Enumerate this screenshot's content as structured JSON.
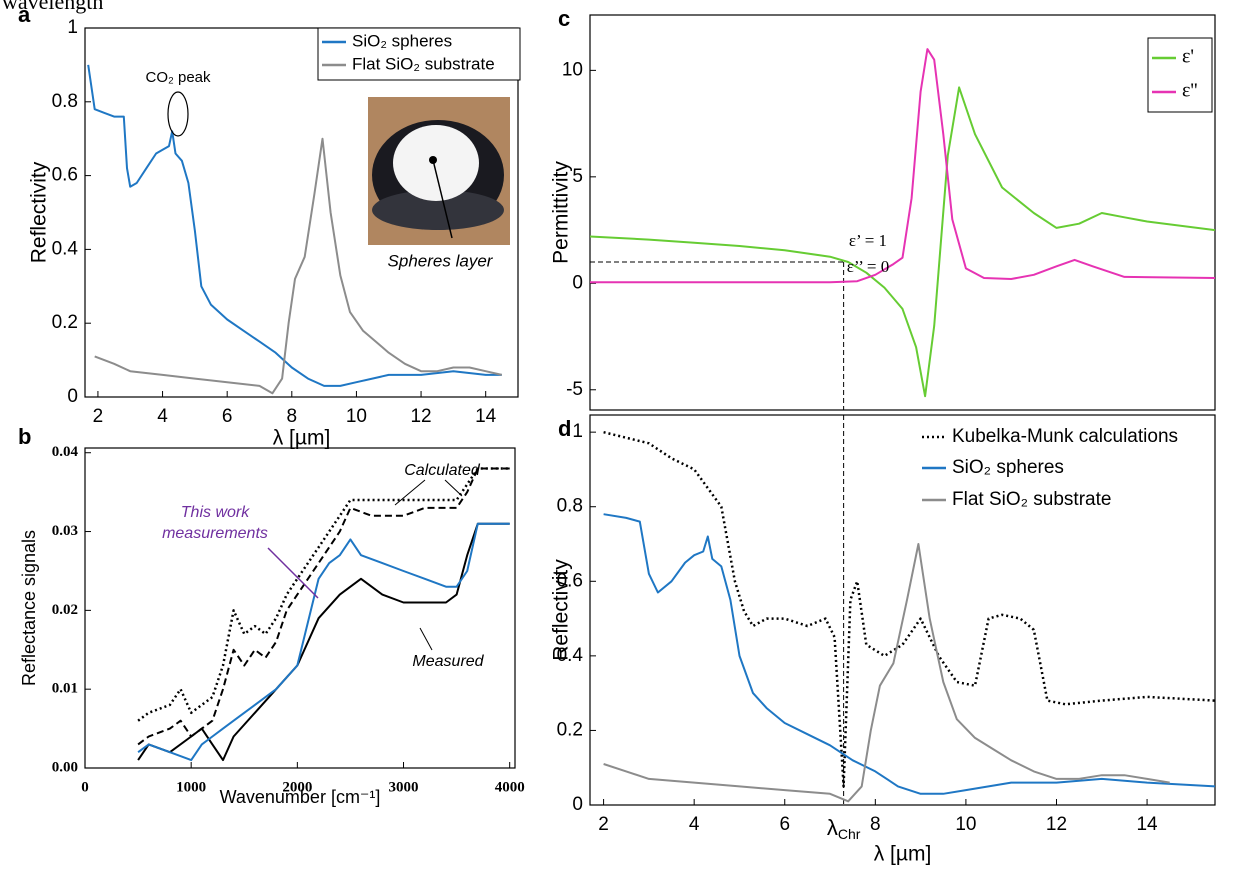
{
  "caption_fragment": "wavelength",
  "chart_data": [
    {
      "type": "line",
      "panel": "a",
      "xlabel": "λ [µm]",
      "ylabel": "Reflectivity",
      "xlim": [
        1.6,
        15.0
      ],
      "xticks": [
        2,
        4,
        6,
        8,
        10,
        12,
        14
      ],
      "ylim": [
        0,
        1
      ],
      "yticks": [
        0,
        0.2,
        0.4,
        0.6,
        0.8,
        1
      ],
      "series": [
        {
          "name": "SiO₂ spheres",
          "color": "#1f77c4",
          "x": [
            1.7,
            1.9,
            2.2,
            2.5,
            2.8,
            2.9,
            3.0,
            3.2,
            3.5,
            3.8,
            4.0,
            4.2,
            4.3,
            4.4,
            4.6,
            4.8,
            5.0,
            5.2,
            5.5,
            6.0,
            6.5,
            7.0,
            7.5,
            8.0,
            8.5,
            9.0,
            9.5,
            10,
            11,
            12,
            13,
            14,
            14.5
          ],
          "values": [
            0.9,
            0.78,
            0.77,
            0.76,
            0.76,
            0.62,
            0.57,
            0.58,
            0.62,
            0.66,
            0.67,
            0.68,
            0.72,
            0.66,
            0.64,
            0.58,
            0.45,
            0.3,
            0.25,
            0.21,
            0.18,
            0.15,
            0.12,
            0.08,
            0.05,
            0.03,
            0.03,
            0.04,
            0.06,
            0.06,
            0.07,
            0.06,
            0.06
          ]
        },
        {
          "name": "Flat SiO₂ substrate",
          "color": "#8c8c8c",
          "x": [
            1.9,
            2.5,
            3,
            4,
            5,
            6,
            7,
            7.4,
            7.7,
            7.9,
            8.1,
            8.4,
            8.7,
            8.95,
            9.2,
            9.5,
            9.8,
            10.2,
            10.6,
            11,
            11.5,
            12,
            12.5,
            13,
            13.5,
            14,
            14.5
          ],
          "values": [
            0.11,
            0.09,
            0.07,
            0.06,
            0.05,
            0.04,
            0.03,
            0.01,
            0.05,
            0.2,
            0.32,
            0.38,
            0.55,
            0.7,
            0.5,
            0.33,
            0.23,
            0.18,
            0.15,
            0.12,
            0.09,
            0.07,
            0.07,
            0.08,
            0.08,
            0.07,
            0.06
          ]
        }
      ],
      "annotations": {
        "co2": "CO₂ peak",
        "inset": "Spheres layer"
      }
    },
    {
      "type": "line",
      "panel": "b",
      "xlabel": "Wavenumber [cm⁻¹]",
      "ylabel": "Reflectance signals",
      "xlim": [
        0,
        4050
      ],
      "xticks": [
        0,
        1000,
        2000,
        3000,
        4000
      ],
      "ylim": [
        0,
        0.0406
      ],
      "yticks": [
        {
          "value": 0,
          "label": "0.00"
        },
        0.01,
        0.02,
        0.03,
        0.04
      ],
      "series": [
        {
          "color": "#000000",
          "dash": "dotted",
          "x": [
            500,
            600,
            800,
            900,
            1000,
            1100,
            1200,
            1300,
            1400,
            1500,
            1600,
            1700,
            1800,
            1900,
            2000,
            2200,
            2400,
            2500,
            2700,
            3000,
            3200,
            3500,
            3600,
            3700,
            3800,
            4000
          ],
          "values": [
            0.006,
            0.007,
            0.008,
            0.01,
            0.007,
            0.008,
            0.009,
            0.013,
            0.02,
            0.017,
            0.018,
            0.017,
            0.019,
            0.022,
            0.024,
            0.028,
            0.032,
            0.034,
            0.034,
            0.034,
            0.034,
            0.034,
            0.036,
            0.038,
            0.038,
            0.038
          ]
        },
        {
          "color": "#000000",
          "dash": "dashed",
          "x": [
            500,
            600,
            800,
            900,
            1000,
            1100,
            1200,
            1300,
            1400,
            1500,
            1600,
            1700,
            1800,
            1900,
            2000,
            2200,
            2400,
            2500,
            2700,
            3000,
            3200,
            3500,
            3600,
            3700,
            3800,
            4000
          ],
          "values": [
            0.003,
            0.004,
            0.005,
            0.006,
            0.004,
            0.005,
            0.006,
            0.01,
            0.015,
            0.013,
            0.015,
            0.014,
            0.016,
            0.02,
            0.022,
            0.026,
            0.03,
            0.033,
            0.032,
            0.032,
            0.033,
            0.033,
            0.035,
            0.038,
            0.038,
            0.038
          ]
        },
        {
          "color": "#000000",
          "x": [
            500,
            600,
            800,
            1000,
            1100,
            1200,
            1300,
            1400,
            1600,
            1800,
            2000,
            2200,
            2400,
            2600,
            2800,
            3000,
            3200,
            3400,
            3500,
            3600,
            3700,
            3800,
            4000
          ],
          "values": [
            0.001,
            0.003,
            0.002,
            0.004,
            0.005,
            0.003,
            0.001,
            0.004,
            0.007,
            0.01,
            0.013,
            0.019,
            0.022,
            0.024,
            0.022,
            0.021,
            0.021,
            0.021,
            0.022,
            0.027,
            0.031,
            0.031,
            0.031
          ]
        },
        {
          "color": "#1f77c4",
          "x": [
            500,
            600,
            800,
            1000,
            1100,
            1200,
            1300,
            1400,
            1600,
            1800,
            2000,
            2200,
            2300,
            2400,
            2500,
            2600,
            2800,
            3000,
            3200,
            3400,
            3500,
            3600,
            3700,
            3800,
            4000
          ],
          "values": [
            0.002,
            0.003,
            0.002,
            0.001,
            0.003,
            0.004,
            0.005,
            0.006,
            0.008,
            0.01,
            0.013,
            0.024,
            0.026,
            0.027,
            0.029,
            0.027,
            0.026,
            0.025,
            0.024,
            0.023,
            0.023,
            0.025,
            0.031,
            0.031,
            0.031
          ]
        }
      ],
      "annotations": {
        "calculated": "Calculated",
        "measured": "Measured",
        "this_work": [
          "This work",
          "measurements"
        ]
      }
    },
    {
      "type": "line",
      "panel": "c",
      "ylabel": "Permittivity",
      "xlim": [
        1.7,
        15.5
      ],
      "ylim": [
        -5.95,
        12.6
      ],
      "yticks": [
        -5,
        0,
        5,
        10
      ],
      "series": [
        {
          "name": "ε'",
          "color": "#66cc33",
          "x": [
            1.7,
            3,
            4,
            5,
            6,
            7,
            7.4,
            7.8,
            8.2,
            8.6,
            8.9,
            9.1,
            9.3,
            9.6,
            9.85,
            10.2,
            10.8,
            11.5,
            12,
            12.5,
            13,
            13.5,
            14,
            15.5
          ],
          "values": [
            2.2,
            2.05,
            1.9,
            1.75,
            1.55,
            1.25,
            1.0,
            0.5,
            -0.2,
            -1.2,
            -3,
            -5.3,
            -2,
            6,
            9.2,
            7,
            4.5,
            3.3,
            2.6,
            2.8,
            3.3,
            3.1,
            2.9,
            2.5
          ]
        },
        {
          "name": "ε''",
          "color": "#e633b3",
          "x": [
            1.7,
            4,
            6,
            7,
            7.6,
            8.0,
            8.4,
            8.6,
            8.8,
            9.0,
            9.15,
            9.3,
            9.5,
            9.7,
            10,
            10.4,
            11,
            11.5,
            12,
            12.4,
            12.8,
            13.5,
            15.5
          ],
          "values": [
            0.05,
            0.05,
            0.05,
            0.05,
            0.1,
            0.4,
            0.9,
            1.2,
            4,
            9,
            11,
            10.5,
            7,
            3,
            0.7,
            0.25,
            0.2,
            0.4,
            0.8,
            1.1,
            0.8,
            0.3,
            0.25
          ]
        }
      ],
      "marker": {
        "x": 7.3,
        "y": 1
      },
      "annotations": {
        "eps1": "ε’ = 1",
        "eps2": "ε’’ = 0"
      }
    },
    {
      "type": "line",
      "panel": "d",
      "xlabel": "λ [µm]",
      "ylabel": "Reflectivity",
      "xlim": [
        1.7,
        15.5
      ],
      "xticks": [
        2,
        4,
        6,
        8,
        10,
        12,
        14
      ],
      "ylim": [
        0,
        1.046
      ],
      "yticks": [
        0,
        0.2,
        0.4,
        0.6,
        0.8,
        1
      ],
      "lambda_chr": {
        "symbol": "λ",
        "subscript": "Chr",
        "x": 7.3
      },
      "series": [
        {
          "name": "Kubelka-Munk calculations",
          "color": "#000000",
          "dash": "dotted",
          "x": [
            2,
            3,
            3.5,
            4,
            4.3,
            4.6,
            4.9,
            5.1,
            5.3,
            5.6,
            6,
            6.5,
            6.9,
            7.1,
            7.3,
            7.45,
            7.6,
            7.8,
            8.2,
            8.6,
            9,
            9.4,
            9.8,
            10.2,
            10.5,
            10.8,
            11.2,
            11.5,
            11.8,
            12.2,
            13,
            14,
            15.5
          ],
          "values": [
            1.0,
            0.97,
            0.93,
            0.9,
            0.85,
            0.8,
            0.6,
            0.52,
            0.48,
            0.5,
            0.5,
            0.48,
            0.5,
            0.45,
            0.05,
            0.55,
            0.6,
            0.43,
            0.4,
            0.43,
            0.5,
            0.4,
            0.33,
            0.32,
            0.5,
            0.51,
            0.5,
            0.47,
            0.28,
            0.27,
            0.28,
            0.29,
            0.28
          ]
        },
        {
          "name": "SiO₂ spheres",
          "color": "#1f77c4",
          "x": [
            2,
            2.5,
            2.8,
            3.0,
            3.2,
            3.5,
            3.8,
            4.0,
            4.2,
            4.3,
            4.4,
            4.6,
            4.8,
            5.0,
            5.3,
            5.6,
            6,
            6.5,
            7,
            7.5,
            8,
            8.5,
            9,
            9.5,
            10,
            11,
            12,
            13,
            14,
            15.5
          ],
          "values": [
            0.78,
            0.77,
            0.76,
            0.62,
            0.57,
            0.6,
            0.65,
            0.67,
            0.68,
            0.72,
            0.66,
            0.64,
            0.55,
            0.4,
            0.3,
            0.26,
            0.22,
            0.19,
            0.16,
            0.12,
            0.09,
            0.05,
            0.03,
            0.03,
            0.04,
            0.06,
            0.06,
            0.07,
            0.06,
            0.05
          ]
        },
        {
          "name": "Flat SiO₂ substrate",
          "color": "#8c8c8c",
          "x": [
            2,
            2.5,
            3,
            4,
            5,
            6,
            7,
            7.4,
            7.7,
            7.9,
            8.1,
            8.4,
            8.7,
            8.95,
            9.2,
            9.5,
            9.8,
            10.2,
            10.6,
            11,
            11.5,
            12,
            12.5,
            13,
            13.5,
            14,
            14.5
          ],
          "values": [
            0.11,
            0.09,
            0.07,
            0.06,
            0.05,
            0.04,
            0.03,
            0.01,
            0.05,
            0.2,
            0.32,
            0.38,
            0.55,
            0.7,
            0.5,
            0.33,
            0.23,
            0.18,
            0.15,
            0.12,
            0.09,
            0.07,
            0.07,
            0.08,
            0.08,
            0.07,
            0.06
          ]
        }
      ]
    }
  ]
}
